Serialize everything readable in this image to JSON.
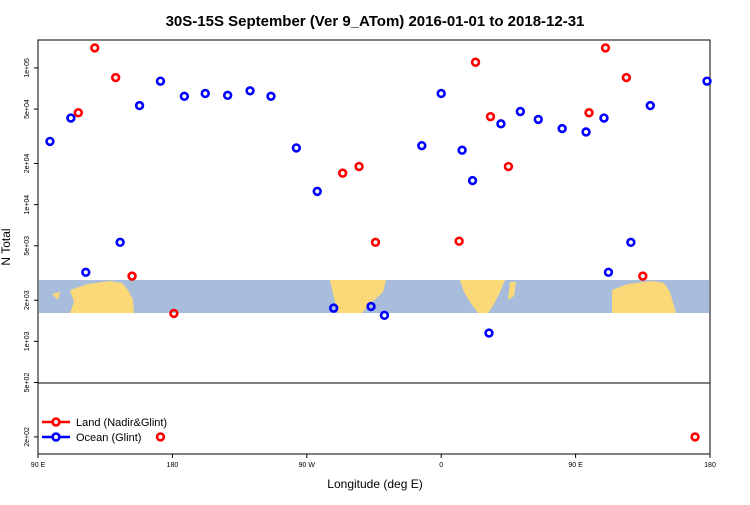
{
  "chart_data": {
    "type": "scatter",
    "title": "30S-15S September (Ver 9_ATom)   2016-01-01 to 2018-12-31",
    "xlabel": "Longitude (deg E)",
    "ylabel": "N Total",
    "x_ticks": [
      {
        "value": 90,
        "label": "90 E"
      },
      {
        "value": 180,
        "label": "180"
      },
      {
        "value": 270,
        "label": "90 W"
      },
      {
        "value": 360,
        "label": "0"
      },
      {
        "value": 450,
        "label": "90 E"
      },
      {
        "value": 540,
        "label": "180"
      }
    ],
    "xlim": [
      90,
      540
    ],
    "y_scale": "log",
    "y_ticks": [
      {
        "value": 200,
        "label": "2e+02"
      },
      {
        "value": 500,
        "label": "5e+02"
      },
      {
        "value": 1000,
        "label": "1e+03"
      },
      {
        "value": 2000,
        "label": "2e+03"
      },
      {
        "value": 5000,
        "label": "5e+03"
      },
      {
        "value": 10000,
        "label": "1e+04"
      },
      {
        "value": 20000,
        "label": "2e+04"
      },
      {
        "value": 50000,
        "label": "5e+04"
      },
      {
        "value": 100000,
        "label": "1e+05"
      }
    ],
    "ylim": [
      150,
      160000
    ],
    "grid": false,
    "legend_position": "bottom-left",
    "series": [
      {
        "name": "Land (Nadir&Glint)",
        "color": "#ff0000",
        "points": [
          {
            "x": 117,
            "y": 47000
          },
          {
            "x": 128,
            "y": 140000
          },
          {
            "x": 142,
            "y": 85000
          },
          {
            "x": 153,
            "y": 3000
          },
          {
            "x": 172,
            "y": 200
          },
          {
            "x": 181,
            "y": 1600
          },
          {
            "x": 294,
            "y": 17000
          },
          {
            "x": 305,
            "y": 19000
          },
          {
            "x": 316,
            "y": 5300
          },
          {
            "x": 372,
            "y": 5400
          },
          {
            "x": 383,
            "y": 110000
          },
          {
            "x": 393,
            "y": 44000
          },
          {
            "x": 405,
            "y": 19000
          },
          {
            "x": 459,
            "y": 47000
          },
          {
            "x": 470,
            "y": 140000
          },
          {
            "x": 484,
            "y": 85000
          },
          {
            "x": 495,
            "y": 3000
          },
          {
            "x": 530,
            "y": 200
          }
        ]
      },
      {
        "name": "Ocean (Glint)",
        "color": "#0000ff",
        "points": [
          {
            "x": 98,
            "y": 29000
          },
          {
            "x": 112,
            "y": 43000
          },
          {
            "x": 122,
            "y": 3200
          },
          {
            "x": 145,
            "y": 5300
          },
          {
            "x": 158,
            "y": 53000
          },
          {
            "x": 172,
            "y": 80000
          },
          {
            "x": 188,
            "y": 62000
          },
          {
            "x": 202,
            "y": 65000
          },
          {
            "x": 217,
            "y": 63000
          },
          {
            "x": 232,
            "y": 68000
          },
          {
            "x": 246,
            "y": 62000
          },
          {
            "x": 263,
            "y": 26000
          },
          {
            "x": 277,
            "y": 12500
          },
          {
            "x": 288,
            "y": 1750
          },
          {
            "x": 313,
            "y": 1800
          },
          {
            "x": 322,
            "y": 1550
          },
          {
            "x": 347,
            "y": 27000
          },
          {
            "x": 360,
            "y": 65000
          },
          {
            "x": 374,
            "y": 25000
          },
          {
            "x": 381,
            "y": 15000
          },
          {
            "x": 392,
            "y": 1150
          },
          {
            "x": 400,
            "y": 39000
          },
          {
            "x": 413,
            "y": 48000
          },
          {
            "x": 425,
            "y": 42000
          },
          {
            "x": 441,
            "y": 36000
          },
          {
            "x": 457,
            "y": 34000
          },
          {
            "x": 469,
            "y": 43000
          },
          {
            "x": 472,
            "y": 3200
          },
          {
            "x": 487,
            "y": 5300
          },
          {
            "x": 500,
            "y": 53000
          },
          {
            "x": 538,
            "y": 80000
          }
        ]
      }
    ]
  }
}
